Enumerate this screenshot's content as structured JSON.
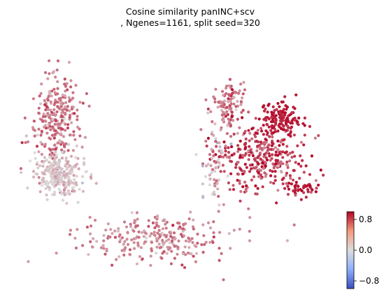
{
  "chart_data": {
    "type": "scatter",
    "title_lines": [
      "Cosine similarity panINC+scv",
      ", Ngenes=1161, split seed=320"
    ],
    "axes_visible": false,
    "colormap": "coolwarm",
    "colors": {
      "high": "#b40426",
      "mid": "#dddddd",
      "low": "#3b4cc0"
    },
    "colorbar": {
      "vmin": -1.0,
      "vmax": 1.0,
      "ticks": [
        0.8,
        0.0,
        -0.8
      ],
      "tick_labels": [
        "0.8",
        "0.0",
        "−0.8"
      ]
    },
    "clusters": [
      {
        "region": "left-branch (upper)",
        "center": [
          0.12,
          0.68
        ],
        "spread": [
          0.035,
          0.09
        ],
        "n": 260,
        "value_mean": 0.45,
        "value_sd": 0.15
      },
      {
        "region": "left-branch (middle, pale)",
        "center": [
          0.13,
          0.45
        ],
        "spread": [
          0.04,
          0.05
        ],
        "n": 260,
        "value_mean": 0.1,
        "value_sd": 0.12
      },
      {
        "region": "lower tail",
        "center": [
          0.42,
          0.18
        ],
        "spread": [
          0.12,
          0.05
        ],
        "n": 260,
        "value_mean": 0.4,
        "value_sd": 0.14
      },
      {
        "region": "right group (upper-left arm)",
        "center": [
          0.64,
          0.74
        ],
        "spread": [
          0.025,
          0.05
        ],
        "n": 110,
        "value_mean": 0.5,
        "value_sd": 0.15
      },
      {
        "region": "right group (body)",
        "center": [
          0.74,
          0.52
        ],
        "spread": [
          0.07,
          0.07
        ],
        "n": 320,
        "value_mean": 0.7,
        "value_sd": 0.2
      },
      {
        "region": "right group (upper-right, dark)",
        "center": [
          0.8,
          0.68
        ],
        "spread": [
          0.03,
          0.04
        ],
        "n": 140,
        "value_mean": 0.9,
        "value_sd": 0.08
      },
      {
        "region": "right group (lower-right tip)",
        "center": [
          0.86,
          0.39
        ],
        "spread": [
          0.03,
          0.015
        ],
        "n": 40,
        "value_mean": 0.85,
        "value_sd": 0.1
      },
      {
        "region": "right group (left arm, grey)",
        "center": [
          0.6,
          0.5
        ],
        "spread": [
          0.02,
          0.08
        ],
        "n": 60,
        "value_mean": 0.2,
        "value_sd": 0.25
      }
    ]
  }
}
